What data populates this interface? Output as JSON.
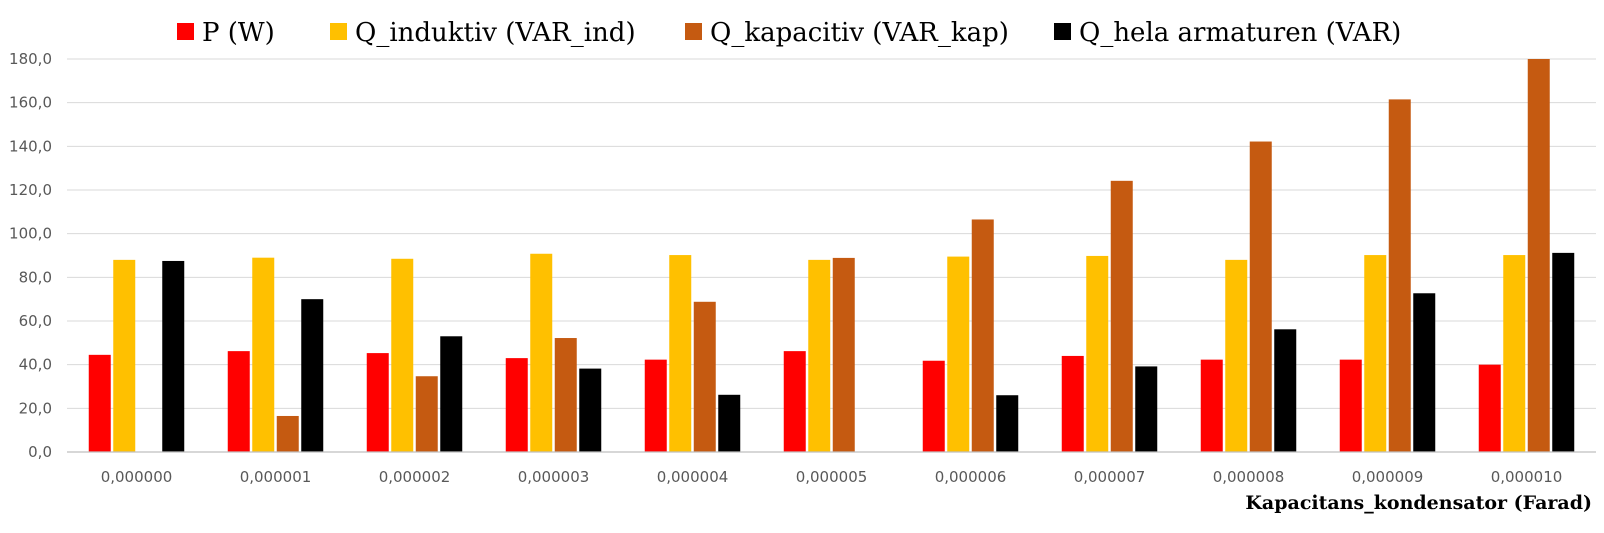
{
  "chart_data": {
    "type": "bar",
    "xlabel": "Kapacitans_kondensator  (Farad)",
    "ylabel": "",
    "ylim": [
      0,
      180
    ],
    "yticks": [
      "0,0",
      "20,0",
      "40,0",
      "60,0",
      "80,0",
      "100,0",
      "120,0",
      "140,0",
      "160,0",
      "180,0"
    ],
    "ytick_values": [
      0,
      20,
      40,
      60,
      80,
      100,
      120,
      140,
      160,
      180
    ],
    "grid": true,
    "legend": "top",
    "categories": [
      "0,000000",
      "0,000001",
      "0,000002",
      "0,000003",
      "0,000004",
      "0,000005",
      "0,000006",
      "0,000007",
      "0,000008",
      "0,000009",
      "0,000010"
    ],
    "series": [
      {
        "name": "P (W)",
        "color": "#ff0000",
        "values": [
          44.5,
          46.2,
          45.3,
          43.0,
          42.3,
          46.2,
          41.8,
          44.0,
          42.3,
          42.3,
          40.0
        ]
      },
      {
        "name": "Q_induktiv (VAR_ind)",
        "color": "#ffc000",
        "values": [
          88.0,
          89.0,
          88.5,
          90.8,
          90.2,
          88.0,
          89.5,
          89.8,
          88.0,
          90.2,
          90.2
        ]
      },
      {
        "name": "Q_kapacitiv (VAR_kap)",
        "color": "#c55a11",
        "values": [
          0,
          16.5,
          34.7,
          52.2,
          68.8,
          88.9,
          106.5,
          124.2,
          142.2,
          161.5,
          180.0
        ]
      },
      {
        "name": "Q_hela armaturen (VAR)",
        "color": "#000000",
        "values": [
          87.5,
          70.0,
          53.0,
          38.2,
          26.2,
          0,
          26.0,
          39.2,
          56.2,
          72.7,
          91.2
        ]
      }
    ]
  }
}
